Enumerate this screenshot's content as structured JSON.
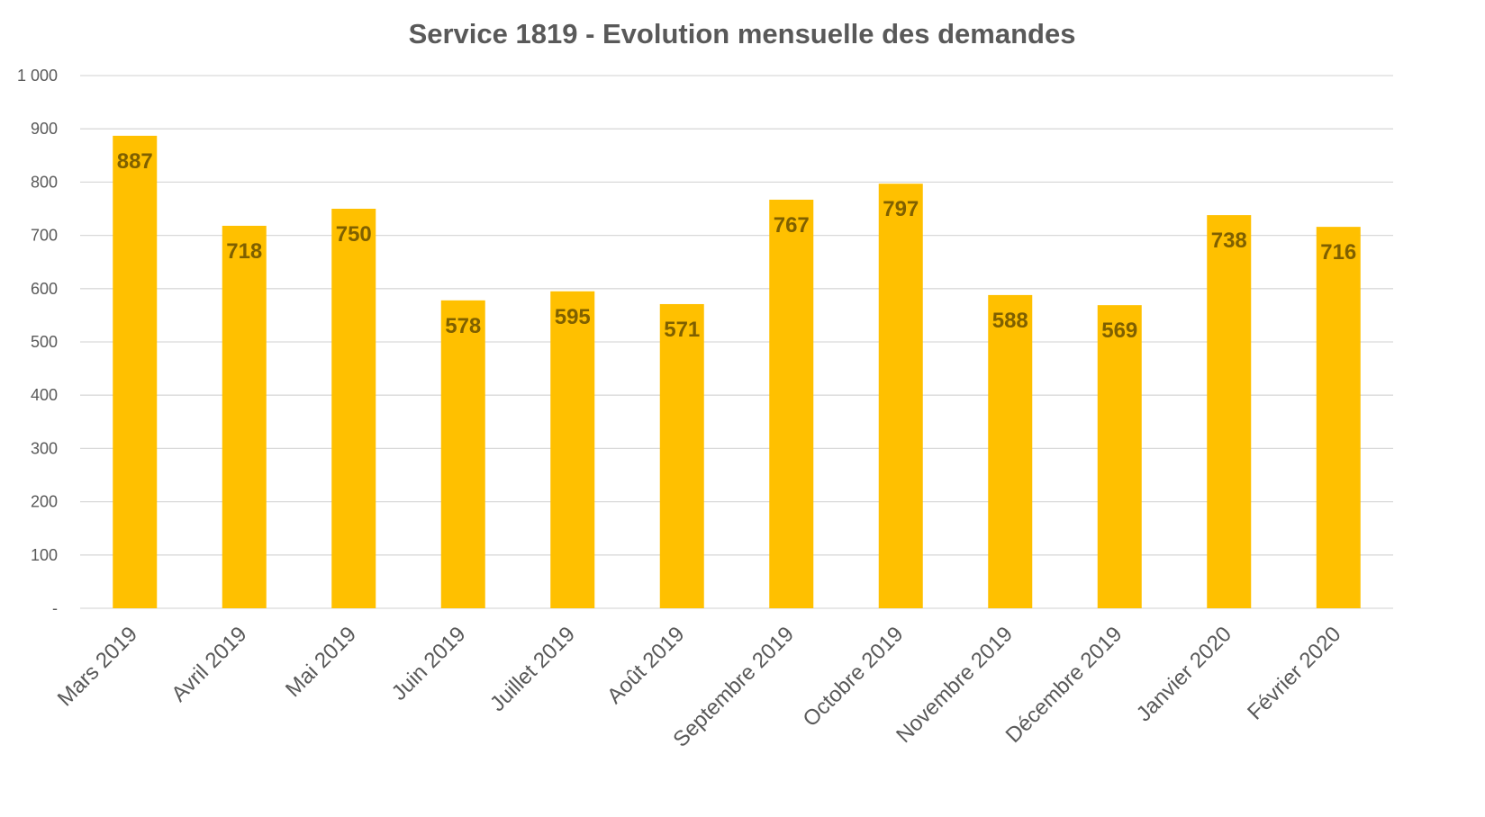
{
  "chart_data": {
    "type": "bar",
    "title": "Service 1819 - Evolution mensuelle des demandes",
    "xlabel": "",
    "ylabel": "",
    "categories": [
      "Mars 2019",
      "Avril 2019",
      "Mai 2019",
      "Juin 2019",
      "Juillet 2019",
      "Août 2019",
      "Septembre 2019",
      "Octobre 2019",
      "Novembre 2019",
      "Décembre 2019",
      "Janvier 2020",
      "Février 2020"
    ],
    "values": [
      887,
      718,
      750,
      578,
      595,
      571,
      767,
      797,
      588,
      569,
      738,
      716
    ],
    "ylim": [
      0,
      1000
    ],
    "y_ticks": [
      0,
      100,
      200,
      300,
      400,
      500,
      600,
      700,
      800,
      900,
      1000
    ],
    "y_tick_labels": [
      "-",
      "100",
      "200",
      "300",
      "400",
      "500",
      "600",
      "700",
      "800",
      "900",
      "1 000"
    ],
    "grid": true,
    "legend": "none",
    "data_labels": "inside-end",
    "colors": {
      "bar": "#FFC000",
      "data_label": "#7F6000",
      "text": "#595959",
      "grid": "#D9D9D9"
    }
  }
}
